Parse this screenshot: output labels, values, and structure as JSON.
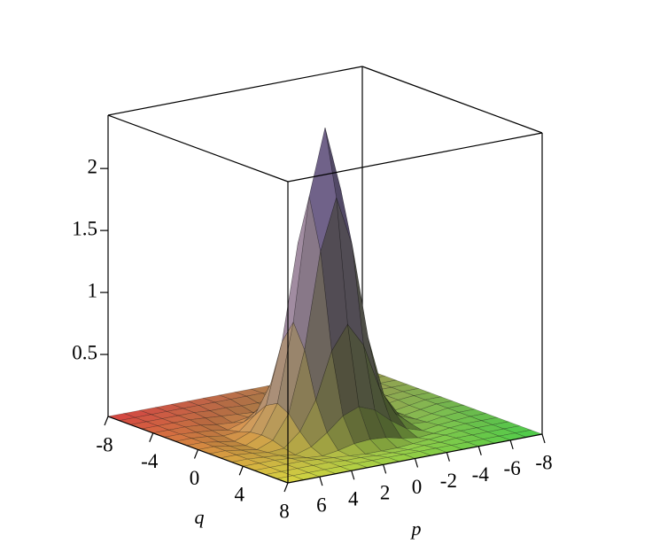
{
  "chart_data": {
    "type": "surface",
    "x_label": "p",
    "y_label": "q",
    "xlim": [
      -8,
      8
    ],
    "ylim": [
      -8,
      8
    ],
    "zlim": [
      0,
      2.43
    ],
    "xticks": [
      -8,
      -6,
      -4,
      -2,
      0,
      2,
      4,
      6
    ],
    "yticks": [
      -8,
      -4,
      0,
      4,
      8
    ],
    "zticks": [
      0.5,
      1,
      1.5,
      2
    ],
    "x": [
      -8,
      -7,
      -6,
      -5,
      -4,
      -3,
      -2,
      -1,
      0,
      1,
      2,
      3,
      4,
      5,
      6,
      7,
      8
    ],
    "y": [
      -8,
      -7,
      -6,
      -5,
      -4,
      -3,
      -2,
      -1,
      0,
      1,
      2,
      3,
      4,
      5,
      6,
      7,
      8
    ],
    "z": [
      [
        0,
        0,
        0,
        0,
        0,
        0,
        0,
        0,
        0,
        0,
        0,
        0,
        0,
        0,
        0,
        0,
        0
      ],
      [
        0,
        0,
        0,
        0,
        0,
        0,
        0,
        0,
        0,
        0,
        0,
        0,
        0,
        0,
        0,
        0,
        0
      ],
      [
        0,
        0,
        0,
        0,
        0,
        -0.01,
        -0.01,
        -0.02,
        -0.02,
        -0.02,
        -0.01,
        -0.01,
        0,
        0,
        0,
        0,
        0
      ],
      [
        0,
        0,
        0,
        0,
        -0.01,
        -0.02,
        -0.03,
        -0.04,
        -0.04,
        -0.04,
        -0.03,
        -0.02,
        -0.01,
        0,
        0,
        0,
        0
      ],
      [
        0,
        0,
        0,
        -0.01,
        -0.03,
        -0.04,
        -0.02,
        0.01,
        0.02,
        0.01,
        -0.02,
        -0.04,
        -0.03,
        -0.01,
        0,
        0,
        0
      ],
      [
        0,
        0,
        -0.01,
        -0.02,
        -0.04,
        0,
        0.09,
        0.2,
        0.25,
        0.2,
        0.09,
        0,
        -0.04,
        -0.02,
        -0.01,
        0,
        0
      ],
      [
        0,
        0,
        -0.01,
        -0.03,
        -0.02,
        0.09,
        0.32,
        0.69,
        0.88,
        0.69,
        0.32,
        0.09,
        -0.02,
        -0.03,
        -0.01,
        0,
        0
      ],
      [
        0,
        0,
        -0.02,
        -0.04,
        0.01,
        0.2,
        0.69,
        1.46,
        1.87,
        1.46,
        0.69,
        0.2,
        0.01,
        -0.04,
        -0.02,
        0,
        0
      ],
      [
        0,
        0,
        -0.02,
        -0.04,
        0.02,
        0.25,
        0.88,
        1.87,
        2.4,
        1.87,
        0.88,
        0.25,
        0.02,
        -0.04,
        -0.02,
        0,
        0
      ],
      [
        0,
        0,
        -0.02,
        -0.04,
        0.01,
        0.2,
        0.69,
        1.46,
        1.87,
        1.46,
        0.69,
        0.2,
        0.01,
        -0.04,
        -0.02,
        0,
        0
      ],
      [
        0,
        0,
        -0.01,
        -0.03,
        -0.02,
        0.09,
        0.32,
        0.69,
        0.88,
        0.69,
        0.32,
        0.09,
        -0.02,
        -0.03,
        -0.01,
        0,
        0
      ],
      [
        0,
        0,
        -0.01,
        -0.02,
        -0.04,
        0,
        0.09,
        0.2,
        0.25,
        0.2,
        0.09,
        0,
        -0.04,
        -0.02,
        -0.01,
        0,
        0
      ],
      [
        0,
        0,
        0,
        -0.01,
        -0.03,
        -0.04,
        -0.02,
        0.01,
        0.02,
        0.01,
        -0.02,
        -0.04,
        -0.03,
        -0.01,
        0,
        0,
        0
      ],
      [
        0,
        0,
        0,
        0,
        -0.01,
        -0.02,
        -0.03,
        -0.04,
        -0.04,
        -0.04,
        -0.03,
        -0.02,
        -0.01,
        0,
        0,
        0,
        0
      ],
      [
        0,
        0,
        0,
        0,
        0,
        -0.01,
        -0.01,
        -0.02,
        -0.02,
        -0.02,
        -0.01,
        -0.01,
        0,
        0,
        0,
        0,
        0
      ],
      [
        0,
        0,
        0,
        0,
        0,
        0,
        0,
        0,
        0,
        0,
        0,
        0,
        0,
        0,
        0,
        0,
        0
      ],
      [
        0,
        0,
        0,
        0,
        0,
        0,
        0,
        0,
        0,
        0,
        0,
        0,
        0,
        0,
        0,
        0,
        0
      ]
    ]
  }
}
